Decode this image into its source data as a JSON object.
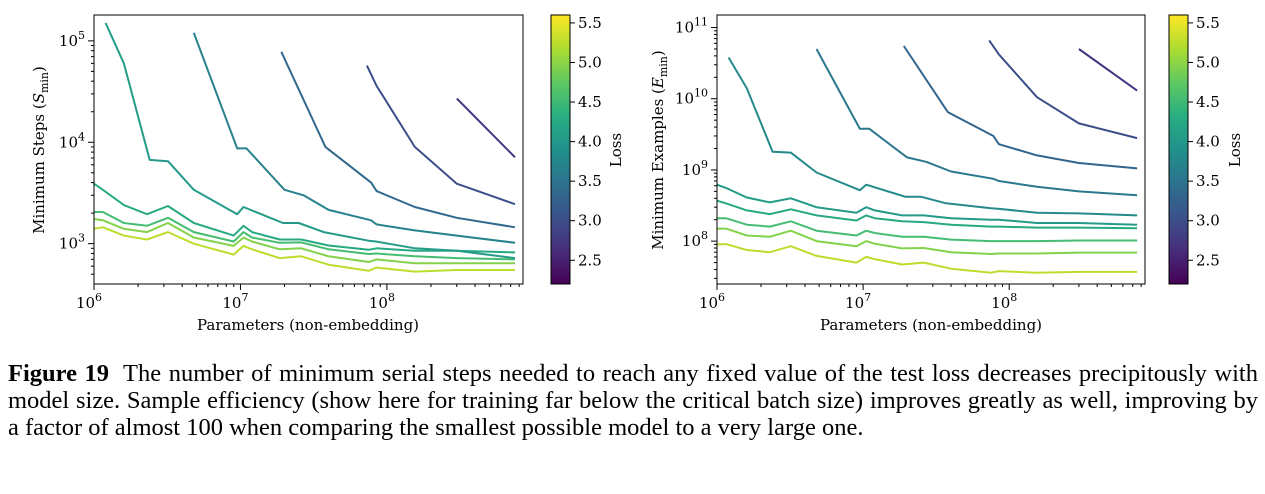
{
  "chart_data": [
    {
      "type": "line",
      "title": "",
      "xlabel": "Parameters (non-embedding)",
      "ylabel_prefix": "Minimum Steps (",
      "ylabel_symbol": "S",
      "ylabel_sub": "min",
      "ylabel_suffix": ")",
      "xscale": "log",
      "yscale": "log",
      "xlim": [
        1000000,
        850000000
      ],
      "ylim": [
        400,
        180000
      ],
      "xticks": [
        {
          "base": "10",
          "exp": "6",
          "value": 1000000
        },
        {
          "base": "10",
          "exp": "7",
          "value": 10000000
        },
        {
          "base": "10",
          "exp": "8",
          "value": 100000000
        }
      ],
      "yticks": [
        {
          "base": "10",
          "exp": "3",
          "value": 1000
        },
        {
          "base": "10",
          "exp": "4",
          "value": 10000
        },
        {
          "base": "10",
          "exp": "5",
          "value": 100000
        }
      ],
      "colorbar": {
        "label": "Loss",
        "min": 2.2,
        "max": 5.6,
        "ticks": [
          "2.5",
          "3.0",
          "3.5",
          "4.0",
          "4.5",
          "5.0",
          "5.5"
        ],
        "colormap": "viridis"
      },
      "series": [
        {
          "name": "loss 5.25",
          "loss": 5.25,
          "x": [
            1000000,
            1150000,
            1600000,
            2300000,
            3200000,
            4800000,
            9000000,
            10500000,
            12000000,
            18500000,
            26000000,
            40000000,
            75000000,
            85000000,
            155000000,
            300000000,
            750000000
          ],
          "y": [
            1400,
            1450,
            1200,
            1100,
            1300,
            1000,
            780,
            950,
            880,
            720,
            750,
            620,
            540,
            580,
            530,
            550,
            550
          ]
        },
        {
          "name": "loss 4.95",
          "loss": 4.95,
          "x": [
            1000000,
            1150000,
            1600000,
            2300000,
            3200000,
            4800000,
            9000000,
            10500000,
            12000000,
            18500000,
            26000000,
            40000000,
            75000000,
            85000000,
            155000000,
            300000000,
            750000000
          ],
          "y": [
            1750,
            1700,
            1400,
            1300,
            1600,
            1150,
            950,
            1150,
            1050,
            880,
            900,
            750,
            660,
            700,
            640,
            640,
            640
          ]
        },
        {
          "name": "loss 4.55",
          "loss": 4.55,
          "x": [
            1000000,
            1150000,
            1600000,
            2300000,
            3200000,
            4800000,
            9000000,
            10500000,
            12000000,
            18500000,
            26000000,
            40000000,
            75000000,
            85000000,
            155000000,
            300000000,
            750000000
          ],
          "y": [
            2050,
            2050,
            1600,
            1500,
            1800,
            1300,
            1050,
            1300,
            1150,
            1020,
            1030,
            880,
            790,
            800,
            750,
            720,
            700
          ]
        },
        {
          "name": "loss 4.25",
          "loss": 4.25,
          "x": [
            1000000,
            1150000,
            1600000,
            2300000,
            3200000,
            4800000,
            9000000,
            10500000,
            12000000,
            18500000,
            26000000,
            40000000,
            75000000,
            85000000,
            155000000,
            300000000,
            750000000
          ],
          "y": [
            3900,
            3400,
            2400,
            1950,
            2350,
            1600,
            1200,
            1500,
            1300,
            1100,
            1100,
            960,
            870,
            900,
            850,
            850,
            820
          ]
        },
        {
          "name": "loss 4.05",
          "loss": 4.05,
          "x": [
            1200000,
            1600000,
            2400000,
            3200000,
            4800000,
            9500000,
            10500000,
            19500000,
            25000000,
            37000000,
            75000000,
            84000000,
            155000000,
            300000000,
            750000000
          ],
          "y": [
            150000,
            60000,
            6700,
            6500,
            3400,
            1950,
            2300,
            1600,
            1600,
            1300,
            1070,
            1050,
            900,
            850,
            720
          ]
        },
        {
          "name": "loss 3.7",
          "loss": 3.7,
          "x": [
            4800000,
            9500000,
            11000000,
            20000000,
            27000000,
            40000000,
            78000000,
            85000000,
            155000000,
            300000000,
            750000000
          ],
          "y": [
            120000,
            8700,
            8700,
            3400,
            3000,
            2150,
            1700,
            1550,
            1350,
            1200,
            1020
          ]
        },
        {
          "name": "loss 3.35",
          "loss": 3.35,
          "x": [
            19000000,
            38000000,
            78000000,
            85000000,
            155000000,
            300000000,
            750000000
          ],
          "y": [
            78000,
            9000,
            4000,
            3300,
            2300,
            1800,
            1450
          ]
        },
        {
          "name": "loss 3.0",
          "loss": 3.0,
          "x": [
            73000000,
            85000000,
            155000000,
            300000000,
            750000000
          ],
          "y": [
            57000,
            36000,
            9000,
            3900,
            2450
          ]
        },
        {
          "name": "loss 2.75",
          "loss": 2.75,
          "x": [
            300000000,
            750000000
          ],
          "y": [
            27000,
            7100
          ]
        }
      ]
    },
    {
      "type": "line",
      "title": "",
      "xlabel": "Parameters (non-embedding)",
      "ylabel_prefix": "Minimum Examples (",
      "ylabel_symbol": "E",
      "ylabel_sub": "min",
      "ylabel_suffix": ")",
      "xscale": "log",
      "yscale": "log",
      "xlim": [
        1000000,
        850000000
      ],
      "ylim": [
        25000000,
        150000000000
      ],
      "xticks": [
        {
          "base": "10",
          "exp": "6",
          "value": 1000000
        },
        {
          "base": "10",
          "exp": "7",
          "value": 10000000
        },
        {
          "base": "10",
          "exp": "8",
          "value": 100000000
        }
      ],
      "yticks": [
        {
          "base": "10",
          "exp": "8",
          "value": 100000000
        },
        {
          "base": "10",
          "exp": "9",
          "value": 1000000000
        },
        {
          "base": "10",
          "exp": "10",
          "value": 10000000000
        },
        {
          "base": "10",
          "exp": "11",
          "value": 100000000000
        }
      ],
      "colorbar": {
        "label": "Loss",
        "min": 2.2,
        "max": 5.6,
        "ticks": [
          "2.5",
          "3.0",
          "3.5",
          "4.0",
          "4.5",
          "5.0",
          "5.5"
        ],
        "colormap": "viridis"
      },
      "series": [
        {
          "name": "loss 5.25",
          "loss": 5.25,
          "x": [
            1000000,
            1150000,
            1600000,
            2300000,
            3200000,
            4800000,
            9000000,
            10500000,
            12000000,
            18500000,
            26000000,
            40000000,
            75000000,
            85000000,
            155000000,
            300000000,
            750000000
          ],
          "y": [
            90000000,
            91000000,
            75000000,
            70000000,
            85000000,
            62000000,
            50000000,
            60000000,
            56000000,
            47000000,
            50000000,
            41000000,
            36000000,
            38000000,
            36000000,
            37000000,
            37000000
          ]
        },
        {
          "name": "loss 4.95",
          "loss": 4.95,
          "x": [
            1000000,
            1150000,
            1600000,
            2300000,
            3200000,
            4800000,
            9000000,
            10500000,
            12000000,
            18500000,
            26000000,
            40000000,
            75000000,
            85000000,
            155000000,
            300000000,
            750000000
          ],
          "y": [
            150000000,
            150000000,
            120000000,
            115000000,
            140000000,
            100000000,
            85000000,
            100000000,
            92000000,
            79000000,
            80000000,
            70000000,
            66000000,
            67000000,
            67000000,
            69000000,
            69000000
          ]
        },
        {
          "name": "loss 4.55",
          "loss": 4.55,
          "x": [
            1000000,
            1150000,
            1600000,
            2300000,
            3200000,
            4800000,
            9000000,
            10500000,
            12000000,
            18500000,
            26000000,
            40000000,
            75000000,
            85000000,
            155000000,
            300000000,
            750000000
          ],
          "y": [
            210000000,
            210000000,
            170000000,
            160000000,
            190000000,
            140000000,
            120000000,
            140000000,
            130000000,
            115000000,
            115000000,
            105000000,
            100000000,
            100000000,
            100000000,
            102000000,
            102000000
          ]
        },
        {
          "name": "loss 4.25",
          "loss": 4.25,
          "x": [
            1000000,
            1150000,
            1600000,
            2300000,
            3200000,
            4800000,
            9000000,
            10500000,
            12000000,
            18500000,
            26000000,
            40000000,
            75000000,
            85000000,
            155000000,
            300000000,
            750000000
          ],
          "y": [
            370000000,
            340000000,
            270000000,
            240000000,
            280000000,
            230000000,
            195000000,
            230000000,
            210000000,
            190000000,
            185000000,
            170000000,
            160000000,
            160000000,
            155000000,
            155000000,
            152000000
          ]
        },
        {
          "name": "loss 4.05",
          "loss": 4.05,
          "x": [
            1000000,
            1150000,
            1600000,
            2300000,
            3200000,
            4800000,
            9000000,
            10500000,
            12000000,
            18500000,
            26000000,
            40000000,
            75000000,
            85000000,
            155000000,
            300000000,
            750000000
          ],
          "y": [
            620000000,
            560000000,
            410000000,
            350000000,
            400000000,
            300000000,
            250000000,
            300000000,
            270000000,
            230000000,
            230000000,
            210000000,
            200000000,
            200000000,
            180000000,
            180000000,
            170000000
          ]
        },
        {
          "name": "loss 3.8",
          "loss": 3.8,
          "x": [
            1200000,
            1600000,
            2400000,
            3200000,
            4800000,
            9500000,
            10500000,
            19500000,
            25000000,
            37000000,
            75000000,
            84000000,
            155000000,
            300000000,
            750000000
          ],
          "y": [
            38000000000,
            14000000000,
            1800000000,
            1750000000,
            920000000,
            520000000,
            620000000,
            420000000,
            420000000,
            340000000,
            290000000,
            285000000,
            250000000,
            245000000,
            230000000
          ]
        },
        {
          "name": "loss 3.55",
          "loss": 3.55,
          "x": [
            4800000,
            9500000,
            11000000,
            20000000,
            27000000,
            40000000,
            78000000,
            85000000,
            155000000,
            300000000,
            750000000
          ],
          "y": [
            50000000000,
            3800000000,
            3800000000,
            1500000000,
            1300000000,
            950000000,
            750000000,
            700000000,
            580000000,
            500000000,
            440000000
          ]
        },
        {
          "name": "loss 3.3",
          "loss": 3.3,
          "x": [
            19000000,
            38000000,
            78000000,
            85000000,
            155000000,
            300000000,
            750000000
          ],
          "y": [
            55000000000,
            6500000000,
            3000000000,
            2300000000,
            1600000000,
            1250000000,
            1050000000
          ]
        },
        {
          "name": "loss 3.0",
          "loss": 3.0,
          "x": [
            73000000,
            85000000,
            155000000,
            300000000,
            750000000
          ],
          "y": [
            66000000000,
            42000000000,
            10500000000,
            4500000000,
            2800000000
          ]
        },
        {
          "name": "loss 2.75",
          "loss": 2.75,
          "x": [
            300000000,
            750000000
          ],
          "y": [
            50000000000,
            13000000000
          ]
        }
      ]
    }
  ],
  "caption": {
    "label": "Figure 19",
    "text": "The number of minimum serial steps needed to reach any fixed value of the test loss decreases precipitously with model size. Sample efficiency (show here for training far below the critical batch size) improves greatly as well, improving by a factor of almost 100 when comparing the smallest possible model to a very large one."
  }
}
